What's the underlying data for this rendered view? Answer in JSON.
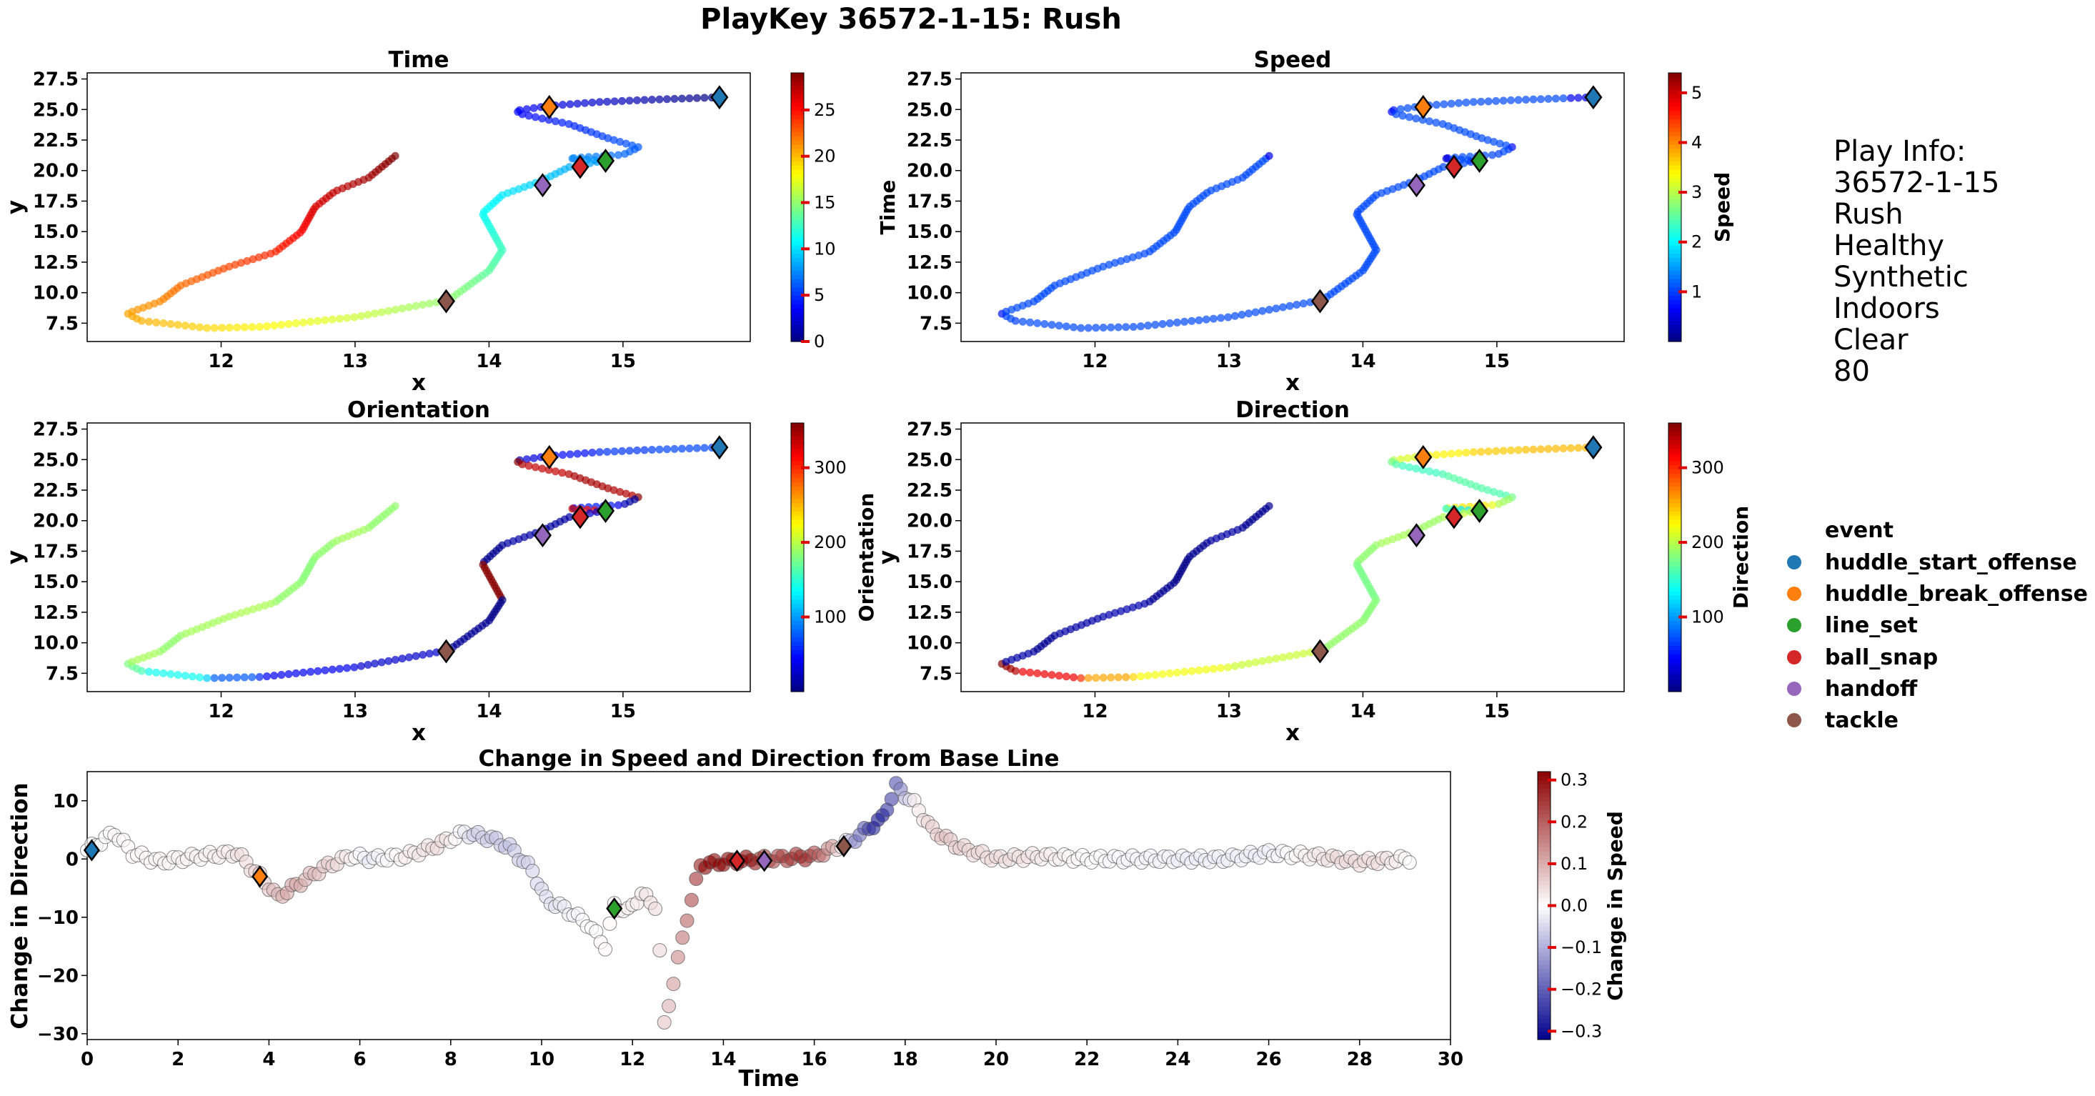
{
  "suptitle": "PlayKey 36572-1-15: Rush",
  "panels": [
    {
      "id": "time",
      "title": "Time",
      "xlabel": "x",
      "ylabel": "y",
      "colorbar_label": "Time",
      "colormap": "jet"
    },
    {
      "id": "speed",
      "title": "Speed",
      "xlabel": "x",
      "ylabel": "",
      "colorbar_label": "Speed",
      "colormap": "jet"
    },
    {
      "id": "orientation",
      "title": "Orientation",
      "xlabel": "x",
      "ylabel": "y",
      "colorbar_label": "Orientation",
      "colormap": "jet"
    },
    {
      "id": "direction",
      "title": "Direction",
      "xlabel": "x",
      "ylabel": "y",
      "colorbar_label": "Direction",
      "colormap": "jet"
    },
    {
      "id": "change",
      "title": "Change in Speed and Direction from Base Line",
      "xlabel": "Time",
      "ylabel": "Change in Direction",
      "colorbar_label": "Change in Speed",
      "colormap": "seismic"
    }
  ],
  "play_info": {
    "heading": "Play Info:",
    "lines": [
      "36572-1-15",
      "Rush",
      "Healthy",
      "Synthetic",
      "Indoors",
      "Clear",
      "80"
    ]
  },
  "legend": {
    "title": "event",
    "items": [
      {
        "label": "huddle_start_offense",
        "color": "#1f77b4"
      },
      {
        "label": "huddle_break_offense",
        "color": "#ff7f0e"
      },
      {
        "label": "line_set",
        "color": "#2ca02c"
      },
      {
        "label": "ball_snap",
        "color": "#d62728"
      },
      {
        "label": "handoff",
        "color": "#9467bd"
      },
      {
        "label": "tackle",
        "color": "#8c564b"
      }
    ]
  },
  "chart_data": [
    {
      "type": "scatter",
      "title": "Time",
      "xlabel": "x",
      "ylabel": "y",
      "xlim": [
        11.0,
        15.95
      ],
      "ylim": [
        6.0,
        28.0
      ],
      "xticks": [
        12,
        13,
        14,
        15
      ],
      "yticks": [
        7.5,
        10.0,
        12.5,
        15.0,
        17.5,
        20.0,
        22.5,
        25.0,
        27.5
      ],
      "color_by": "Time",
      "colorbar_ticks": [
        0,
        5,
        10,
        15,
        20,
        25
      ],
      "colorbar_range": [
        0,
        29
      ],
      "path_anchors": [
        [
          15.72,
          26.0
        ],
        [
          15.2,
          25.8
        ],
        [
          14.8,
          25.6
        ],
        [
          14.45,
          25.3
        ],
        [
          14.2,
          24.9
        ],
        [
          14.25,
          24.6
        ],
        [
          14.6,
          23.8
        ],
        [
          14.9,
          22.6
        ],
        [
          15.12,
          21.9
        ],
        [
          15.0,
          21.3
        ],
        [
          14.6,
          21.0
        ],
        [
          14.85,
          20.8
        ],
        [
          14.6,
          20.3
        ],
        [
          14.4,
          19.2
        ],
        [
          14.1,
          18.0
        ],
        [
          13.95,
          16.5
        ],
        [
          14.1,
          13.5
        ],
        [
          14.0,
          11.8
        ],
        [
          13.7,
          9.4
        ],
        [
          13.0,
          8.0
        ],
        [
          12.3,
          7.2
        ],
        [
          11.9,
          7.1
        ],
        [
          11.4,
          7.7
        ],
        [
          11.3,
          8.3
        ],
        [
          11.55,
          9.3
        ],
        [
          11.7,
          10.6
        ],
        [
          12.05,
          12.1
        ],
        [
          12.4,
          13.3
        ],
        [
          12.6,
          15.0
        ],
        [
          12.7,
          17.0
        ],
        [
          12.85,
          18.3
        ],
        [
          13.1,
          19.4
        ],
        [
          13.3,
          21.2
        ]
      ],
      "events": [
        {
          "event": "huddle_start_offense",
          "x": 15.72,
          "y": 26.0
        },
        {
          "event": "huddle_break_offense",
          "x": 14.45,
          "y": 25.2
        },
        {
          "event": "line_set",
          "x": 14.87,
          "y": 20.8
        },
        {
          "event": "ball_snap",
          "x": 14.68,
          "y": 20.3
        },
        {
          "event": "handoff",
          "x": 14.4,
          "y": 18.8
        },
        {
          "event": "tackle",
          "x": 13.68,
          "y": 9.3
        }
      ]
    },
    {
      "type": "scatter",
      "title": "Speed",
      "xlabel": "x",
      "ylabel": "",
      "xlim": [
        11.0,
        15.95
      ],
      "ylim": [
        6.0,
        28.0
      ],
      "xticks": [
        12,
        13,
        14,
        15
      ],
      "yticks": [
        7.5,
        10.0,
        12.5,
        15.0,
        17.5,
        20.0,
        22.5,
        25.0,
        27.5
      ],
      "color_by": "Speed",
      "colorbar_ticks": [
        1,
        2,
        3,
        4,
        5
      ],
      "colorbar_range": [
        0.0,
        5.4
      ]
    },
    {
      "type": "scatter",
      "title": "Orientation",
      "xlabel": "x",
      "ylabel": "y",
      "xlim": [
        11.0,
        15.95
      ],
      "ylim": [
        6.0,
        28.0
      ],
      "xticks": [
        12,
        13,
        14,
        15
      ],
      "yticks": [
        7.5,
        10.0,
        12.5,
        15.0,
        17.5,
        20.0,
        22.5,
        25.0,
        27.5
      ],
      "color_by": "Orientation",
      "colorbar_ticks": [
        100,
        200,
        300
      ],
      "colorbar_range": [
        0,
        360
      ]
    },
    {
      "type": "scatter",
      "title": "Direction",
      "xlabel": "x",
      "ylabel": "y",
      "xlim": [
        11.0,
        15.95
      ],
      "ylim": [
        6.0,
        28.0
      ],
      "xticks": [
        12,
        13,
        14,
        15
      ],
      "yticks": [
        7.5,
        10.0,
        12.5,
        15.0,
        17.5,
        20.0,
        22.5,
        25.0,
        27.5
      ],
      "color_by": "Direction",
      "colorbar_ticks": [
        100,
        200,
        300
      ],
      "colorbar_range": [
        0,
        360
      ]
    },
    {
      "type": "scatter",
      "title": "Change in Speed and Direction from Base Line",
      "xlabel": "Time",
      "ylabel": "Change in Direction",
      "xlim": [
        0,
        30
      ],
      "ylim": [
        -31,
        15
      ],
      "xticks": [
        0,
        2,
        4,
        6,
        8,
        10,
        12,
        14,
        16,
        18,
        20,
        22,
        24,
        26,
        28,
        30
      ],
      "yticks": [
        -30,
        -20,
        -10,
        0,
        10
      ],
      "color_by": "Change in Speed",
      "colorbar_ticks": [
        -0.3,
        -0.2,
        -0.1,
        0.0,
        0.1,
        0.2,
        0.3
      ],
      "colorbar_range": [
        -0.32,
        0.32
      ],
      "direction_anchors": [
        [
          0,
          1.5
        ],
        [
          0.6,
          4.5
        ],
        [
          1.0,
          1.0
        ],
        [
          1.6,
          -0.5
        ],
        [
          2.5,
          0.5
        ],
        [
          3.3,
          1.0
        ],
        [
          3.8,
          -3.0
        ],
        [
          4.2,
          -6.5
        ],
        [
          4.6,
          -4.5
        ],
        [
          5.2,
          -1.5
        ],
        [
          5.8,
          0.5
        ],
        [
          6.3,
          0
        ],
        [
          7.0,
          0.5
        ],
        [
          7.6,
          2.0
        ],
        [
          8.3,
          4.5
        ],
        [
          8.9,
          3.5
        ],
        [
          9.3,
          2.0
        ],
        [
          9.8,
          -2.0
        ],
        [
          10.1,
          -7.0
        ],
        [
          10.5,
          -8.5
        ],
        [
          11.0,
          -11.0
        ],
        [
          11.4,
          -15.0
        ],
        [
          11.6,
          -8.0
        ],
        [
          11.9,
          -9.0
        ],
        [
          12.2,
          -6.0
        ],
        [
          12.5,
          -8.0
        ],
        [
          12.6,
          -16.0
        ],
        [
          12.65,
          -23.0
        ],
        [
          12.7,
          -28.5
        ],
        [
          13.2,
          -10.0
        ],
        [
          13.5,
          -1.0
        ],
        [
          14.3,
          -0.3
        ],
        [
          15.0,
          0
        ],
        [
          16.0,
          0.5
        ],
        [
          16.8,
          3.0
        ],
        [
          17.5,
          7.0
        ],
        [
          17.8,
          12.5
        ],
        [
          18.2,
          9.5
        ],
        [
          18.6,
          5.0
        ],
        [
          19.2,
          2.0
        ],
        [
          20.0,
          0
        ],
        [
          21.0,
          0.5
        ],
        [
          22.0,
          0
        ],
        [
          23.0,
          0
        ],
        [
          24.0,
          0
        ],
        [
          25.0,
          0
        ],
        [
          26.0,
          1.0
        ],
        [
          27.0,
          0.5
        ],
        [
          28.0,
          -0.5
        ],
        [
          29.1,
          0
        ]
      ],
      "speed_change_anchors": [
        [
          0,
          0
        ],
        [
          3.0,
          0.02
        ],
        [
          3.8,
          0.06
        ],
        [
          4.5,
          0.12
        ],
        [
          5.5,
          0.05
        ],
        [
          6.2,
          -0.03
        ],
        [
          7.0,
          0.02
        ],
        [
          7.8,
          0.05
        ],
        [
          8.5,
          -0.06
        ],
        [
          9.2,
          -0.08
        ],
        [
          10.0,
          -0.05
        ],
        [
          11.0,
          0.0
        ],
        [
          12.0,
          0.02
        ],
        [
          12.6,
          0.05
        ],
        [
          13.2,
          0.2
        ],
        [
          13.6,
          0.32
        ],
        [
          14.6,
          0.32
        ],
        [
          15.0,
          0.22
        ],
        [
          15.8,
          0.28
        ],
        [
          16.4,
          0.12
        ],
        [
          16.9,
          -0.15
        ],
        [
          17.4,
          -0.3
        ],
        [
          17.8,
          -0.22
        ],
        [
          18.2,
          0.02
        ],
        [
          18.8,
          0.08
        ],
        [
          19.5,
          0.05
        ],
        [
          20.5,
          0.04
        ],
        [
          22.0,
          0.0
        ],
        [
          24.0,
          -0.02
        ],
        [
          26.0,
          -0.02
        ],
        [
          27.5,
          0.05
        ],
        [
          28.5,
          0.04
        ],
        [
          29.1,
          0.0
        ]
      ],
      "events": [
        {
          "event": "huddle_start_offense",
          "x": 0.1,
          "y": 1.5
        },
        {
          "event": "huddle_break_offense",
          "x": 3.8,
          "y": -3.0
        },
        {
          "event": "line_set",
          "x": 11.6,
          "y": -8.5
        },
        {
          "event": "ball_snap",
          "x": 14.3,
          "y": -0.3
        },
        {
          "event": "handoff",
          "x": 14.9,
          "y": -0.3
        },
        {
          "event": "tackle",
          "x": 16.65,
          "y": 2.2
        }
      ]
    }
  ]
}
